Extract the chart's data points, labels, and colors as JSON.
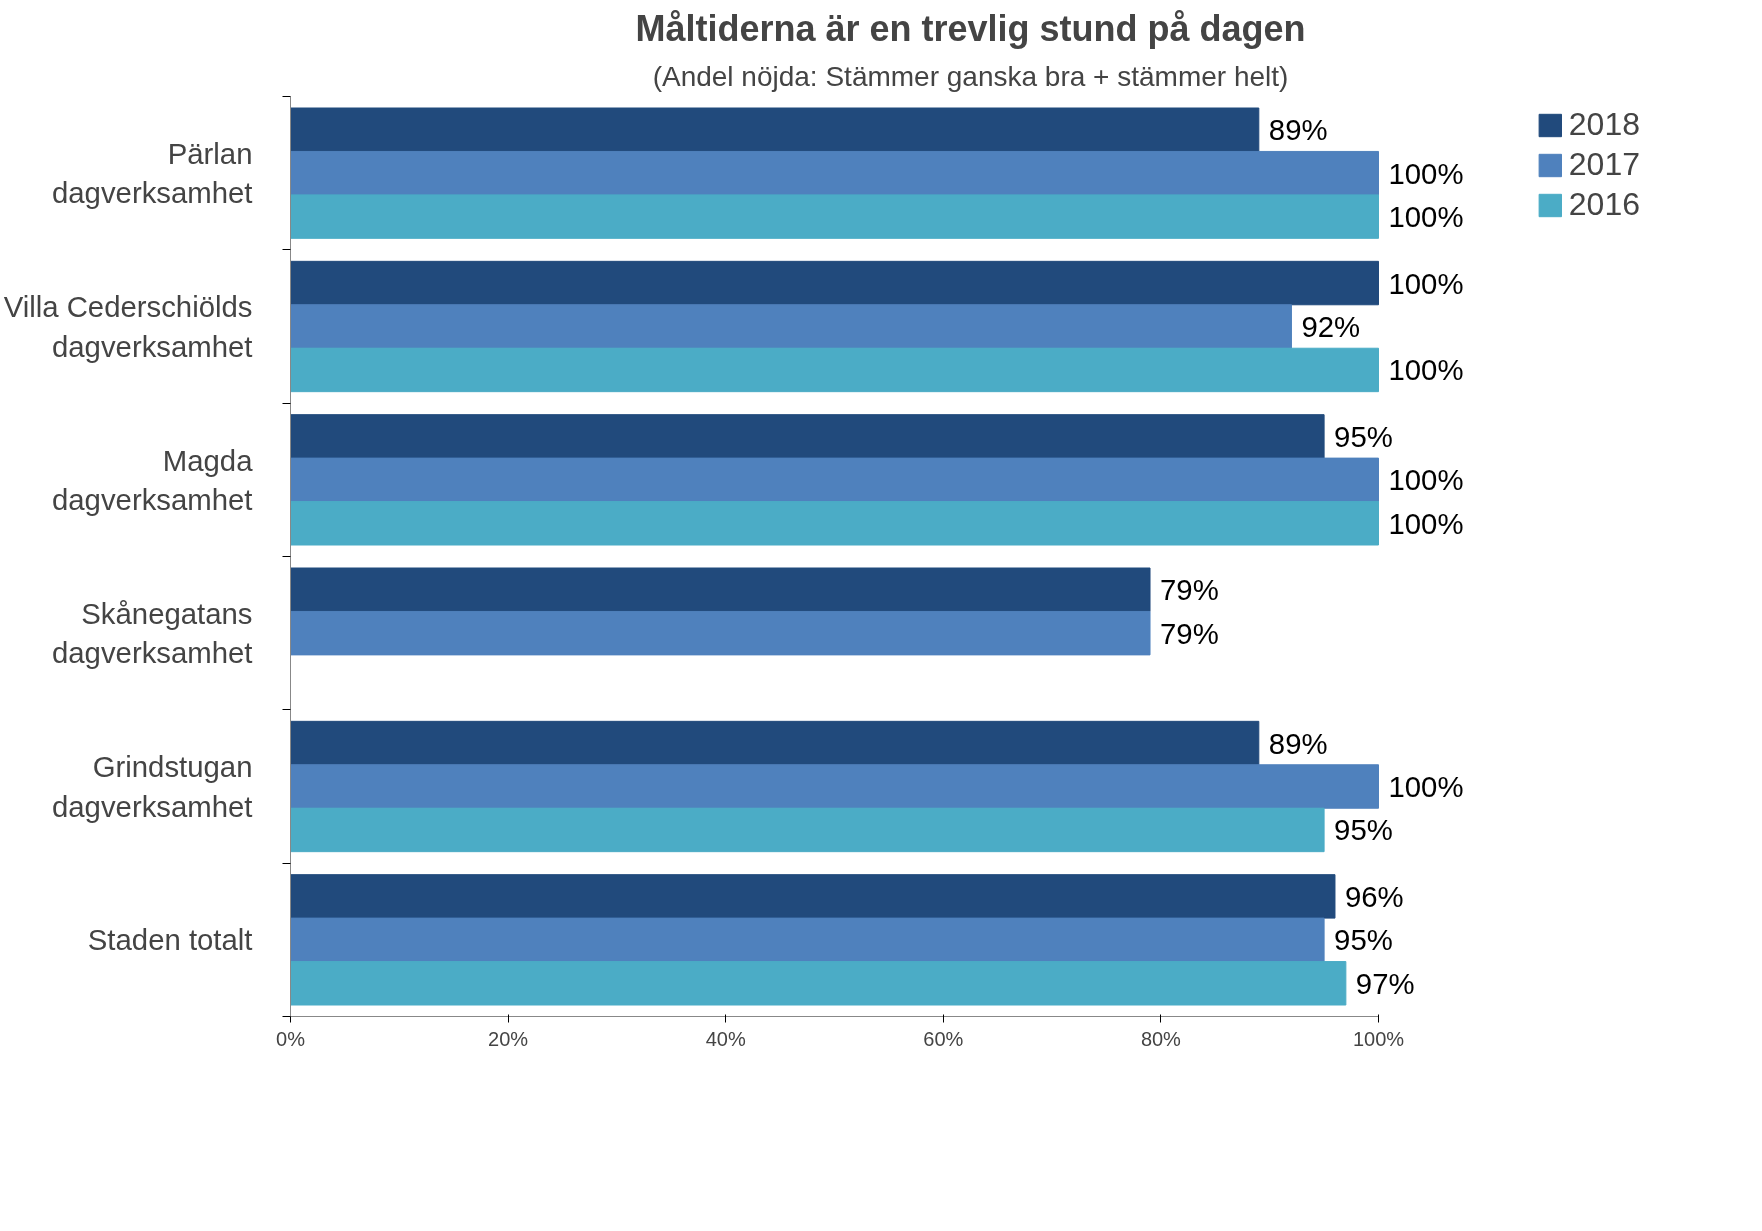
{
  "chart_data": {
    "type": "bar",
    "orientation": "horizontal",
    "title": "Måltiderna är en trevlig stund på dagen",
    "subtitle": "(Andel nöjda: Stämmer ganska bra + stämmer helt)",
    "categories": [
      "Pärlan dagverksamhet",
      "Villa Cederschiölds dagverksamhet",
      "Magda dagverksamhet",
      "Skånegatans dagverksamhet",
      "Grindstugan dagverksamhet",
      "Staden totalt"
    ],
    "series": [
      {
        "name": "2018",
        "color": "#214a7c",
        "values": [
          89,
          100,
          95,
          79,
          89,
          96
        ],
        "value_labels": [
          "89%",
          "100%",
          "95%",
          "79%",
          "89%",
          "96%"
        ]
      },
      {
        "name": "2017",
        "color": "#4f81bd",
        "values": [
          100,
          92,
          100,
          79,
          100,
          95
        ],
        "value_labels": [
          "100%",
          "92%",
          "100%",
          "79%",
          "100%",
          "95%"
        ]
      },
      {
        "name": "2016",
        "color": "#4bacc6",
        "values": [
          100,
          100,
          100,
          null,
          95,
          97
        ],
        "value_labels": [
          "100%",
          "100%",
          "100%",
          null,
          "95%",
          "97%"
        ]
      }
    ],
    "xlim": [
      0,
      100
    ],
    "xticks": [
      {
        "value": 0,
        "label": "0%"
      },
      {
        "value": 20,
        "label": "20%"
      },
      {
        "value": 40,
        "label": "40%"
      },
      {
        "value": 60,
        "label": "60%"
      },
      {
        "value": 80,
        "label": "80%"
      },
      {
        "value": 100,
        "label": "100%"
      }
    ],
    "grid": false,
    "legend": "top right"
  }
}
